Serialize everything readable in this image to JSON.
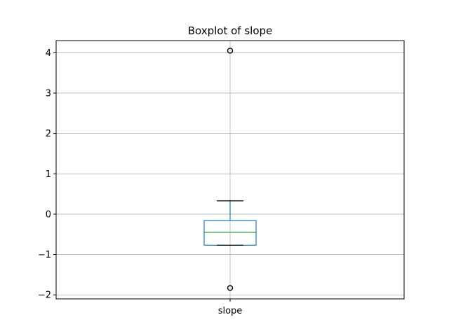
{
  "chart_data": {
    "type": "boxplot",
    "title": "Boxplot of slope",
    "xlabel": "",
    "ylabel": "",
    "categories": [
      "slope"
    ],
    "ylim": [
      -2.1,
      4.3
    ],
    "yticks": [
      -2,
      -1,
      0,
      1,
      2,
      3,
      4
    ],
    "ytick_labels": [
      "−2",
      "−1",
      "0",
      "1",
      "2",
      "3",
      "4"
    ],
    "grid": true,
    "boxes": [
      {
        "name": "slope",
        "whisker_low": -0.77,
        "q1": -0.77,
        "median": -0.45,
        "q3": -0.16,
        "whisker_high": 0.33,
        "outliers": [
          4.05,
          -1.83
        ]
      }
    ],
    "colors": {
      "box": "#1f77b4",
      "median": "#2ca02c",
      "whisker_cap": "#000000",
      "outlier": "#000000",
      "grid": "#b0b0b0",
      "axes": "#000000"
    }
  }
}
